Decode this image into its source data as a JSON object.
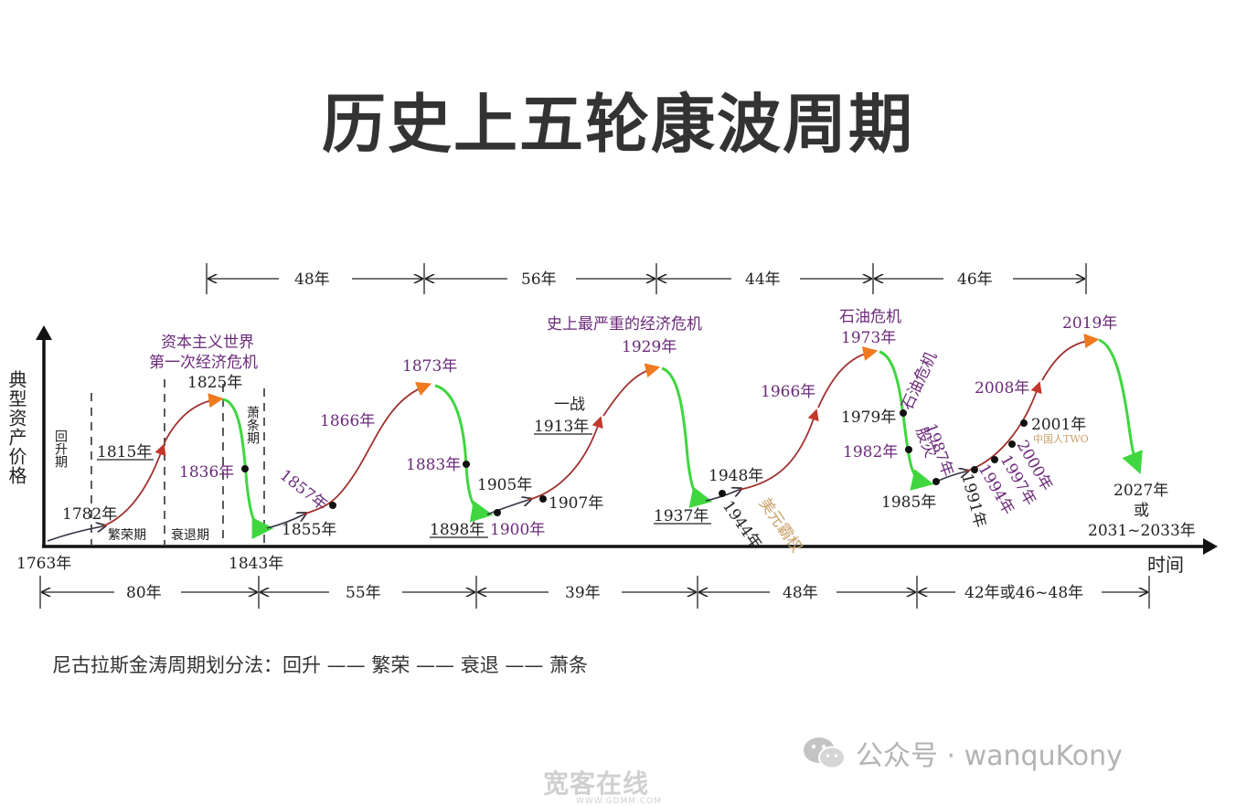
{
  "title": "历史上五轮康波周期",
  "caption": "尼古拉斯金涛周期划分法：回升 —— 繁荣 —— 衰退 —— 萧条",
  "footer": {
    "wechat_label": "公众号 · wanquKony",
    "watermark_main": "宽客在线",
    "watermark_url": "WWW.GDMM.COM"
  },
  "axes": {
    "y_label": "典型资产价格",
    "x_label": "时间"
  },
  "top_intervals": [
    "48年",
    "56年",
    "44年",
    "46年"
  ],
  "bottom_intervals": [
    "80年",
    "55年",
    "39年",
    "48年",
    "42年或46~48年"
  ],
  "axis_years": {
    "start": "1763年",
    "second": "1843年"
  },
  "phase_labels": {
    "recovery": "回升期",
    "prosperity": "繁荣期",
    "recession": "衰退期",
    "depression": "萧条期"
  },
  "events": {
    "e1782": "1782年",
    "e1815": "1815年",
    "crisis_line1": "资本主义世界",
    "crisis_line2": "第一次经济危机",
    "e1825": "1825年",
    "e1836": "1836年",
    "e1855": "1855年",
    "e1857": "1857年",
    "e1866": "1866年",
    "e1873": "1873年",
    "e1883": "1883年",
    "e1898": "1898年",
    "e1900": "1900年",
    "e1905": "1905年",
    "e1907": "1907年",
    "ww1": "一战",
    "e1913": "1913年",
    "great_crisis": "史上最严重的经济危机",
    "e1929": "1929年",
    "e1937": "1937年",
    "e1944": "1944年",
    "bretton": "美元霸权",
    "e1948": "1948年",
    "e1966": "1966年",
    "oil1": "石油危机",
    "e1973": "1973年",
    "oil2": "石油危机",
    "e1979": "1979年",
    "e1982": "1982年",
    "crash": "股灾",
    "e1987": "1987年",
    "e1985": "1985年",
    "e1991": "1991年",
    "e1994": "1994年",
    "e1997": "1997年",
    "e2000": "2000年",
    "e2001": "2001年",
    "e2008": "2008年",
    "e2019": "2019年",
    "small_mark": "中国人TWO",
    "e2027": "2027年",
    "or": "或",
    "e2031": "2031~2033年"
  },
  "colors": {
    "rise": "#a0312f",
    "fall": "#3fd63f",
    "arrow_head": "#f07a1e",
    "label_purple": "#6b2a7a",
    "bretton": "#c8a06a"
  }
}
